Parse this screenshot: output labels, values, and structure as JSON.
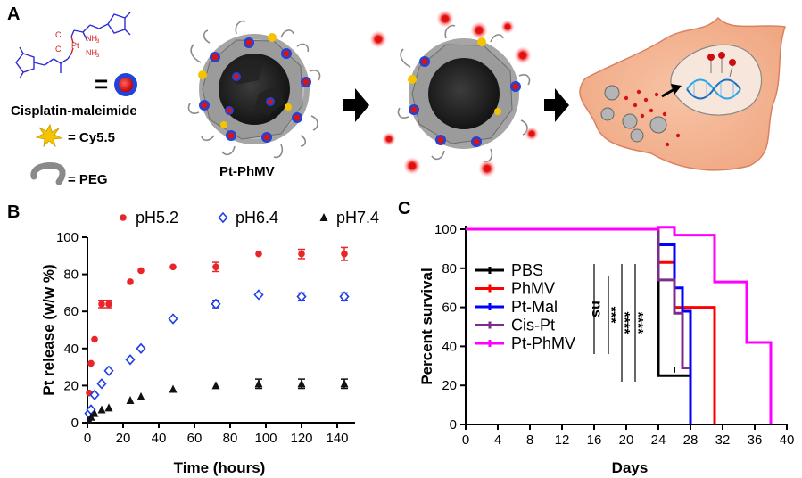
{
  "panel_a": {
    "label": "A",
    "chem_labels": {
      "cl1": "Cl",
      "cl2": "Cl",
      "pt": "Pt",
      "nh3a": "NH",
      "nh3b": "NH",
      "sub": "3"
    },
    "equals": "=",
    "cisplatin_label": "Cisplatin-maleimide",
    "cy55_label": "= Cy5.5",
    "peg_label": "= PEG",
    "particle_label": "Pt-PhMV"
  },
  "chart_data": [
    {
      "type": "scatter",
      "panel_label": "B",
      "title": "",
      "xlabel": "Time (hours)",
      "ylabel": "Pt release (w/w %)",
      "xlim": [
        0,
        150
      ],
      "ylim": [
        0,
        100
      ],
      "xticks": [
        "0",
        "20",
        "40",
        "60",
        "80",
        "100",
        "120",
        "140"
      ],
      "yticks": [
        "0",
        "20",
        "40",
        "60",
        "80",
        "100"
      ],
      "legend_position": "top",
      "series": [
        {
          "name": "pH5.2",
          "color": "#e8262a",
          "marker": "circle",
          "x": [
            1,
            2,
            4,
            8,
            12,
            24,
            30,
            48,
            72,
            96,
            120,
            144
          ],
          "y": [
            16,
            32,
            45,
            64,
            64,
            76,
            82,
            84,
            84,
            91,
            91,
            91
          ],
          "err": [
            0,
            0,
            0,
            2,
            2,
            0,
            0,
            0,
            2.5,
            0,
            2.5,
            3.5
          ]
        },
        {
          "name": "pH6.4",
          "color": "#1f3fe6",
          "marker": "diamond",
          "x": [
            1,
            2,
            4,
            8,
            12,
            24,
            30,
            48,
            72,
            96,
            120,
            144
          ],
          "y": [
            5,
            7,
            15,
            21,
            28,
            34,
            40,
            56,
            64,
            69,
            68,
            68
          ],
          "err": [
            0,
            0,
            0,
            0,
            0,
            0,
            0,
            0,
            2,
            0,
            2,
            2
          ]
        },
        {
          "name": "pH7.4",
          "color": "#111111",
          "marker": "triangle",
          "x": [
            1,
            2,
            4,
            8,
            12,
            24,
            30,
            48,
            72,
            96,
            120,
            144
          ],
          "y": [
            1,
            3,
            5,
            7,
            8,
            12,
            14,
            18,
            20,
            21,
            21,
            21
          ],
          "err": [
            0,
            0,
            0,
            0,
            0,
            0,
            0,
            0,
            0,
            2.5,
            2.5,
            2.5
          ]
        }
      ]
    },
    {
      "type": "line",
      "step": true,
      "panel_label": "C",
      "title": "",
      "xlabel": "Days",
      "ylabel": "Percent survival",
      "xlim": [
        0,
        40
      ],
      "ylim": [
        0,
        100
      ],
      "xticks": [
        "0",
        "4",
        "8",
        "12",
        "16",
        "20",
        "24",
        "28",
        "32",
        "36",
        "40"
      ],
      "yticks": [
        "0",
        "20",
        "40",
        "60",
        "80",
        "100"
      ],
      "legend_position": "center-left",
      "series": [
        {
          "name": "PBS",
          "color": "#000000",
          "points": [
            [
              0,
              100
            ],
            [
              24,
              100
            ],
            [
              24,
              25
            ],
            [
              28,
              25
            ],
            [
              28,
              0
            ]
          ],
          "censor": [
            [
              26,
              27
            ]
          ]
        },
        {
          "name": "PhMV",
          "color": "#ff0000",
          "points": [
            [
              0,
              100
            ],
            [
              24,
              100
            ],
            [
              24,
              83
            ],
            [
              26,
              83
            ],
            [
              26,
              60
            ],
            [
              31,
              60
            ],
            [
              31,
              0
            ]
          ],
          "censor": []
        },
        {
          "name": "Pt-Mal",
          "color": "#0000ff",
          "points": [
            [
              0,
              100
            ],
            [
              24,
              100
            ],
            [
              24,
              92
            ],
            [
              26,
              92
            ],
            [
              26,
              70
            ],
            [
              27,
              70
            ],
            [
              27,
              58
            ],
            [
              28,
              58
            ],
            [
              28,
              0
            ]
          ],
          "censor": []
        },
        {
          "name": "Cis-Pt",
          "color": "#7b2d8e",
          "points": [
            [
              0,
              100
            ],
            [
              24,
              100
            ],
            [
              24,
              74
            ],
            [
              26,
              74
            ],
            [
              26,
              57
            ],
            [
              27,
              57
            ],
            [
              27,
              29
            ],
            [
              28,
              29
            ],
            [
              28,
              29
            ]
          ],
          "censor": []
        },
        {
          "name": "Pt-PhMV",
          "color": "#ff00ff",
          "points": [
            [
              0,
              100
            ],
            [
              24,
              100
            ],
            [
              24,
              101
            ],
            [
              26,
              101
            ],
            [
              26,
              97
            ],
            [
              31,
              97
            ],
            [
              31,
              73
            ],
            [
              35,
              73
            ],
            [
              35,
              42
            ],
            [
              38,
              42
            ],
            [
              38,
              0
            ]
          ],
          "censor": []
        }
      ],
      "significance": [
        "ns",
        "***",
        "****",
        "****"
      ]
    }
  ]
}
